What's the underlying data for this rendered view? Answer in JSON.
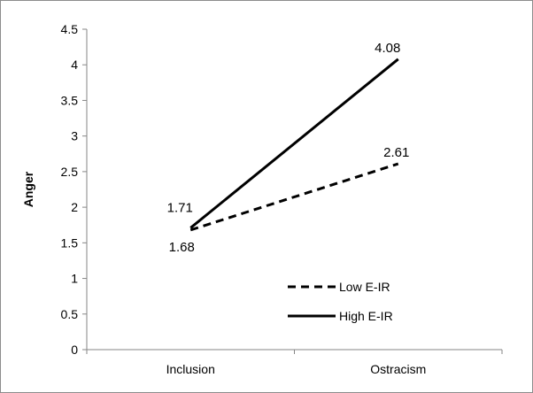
{
  "chart_data": {
    "type": "line",
    "title": "",
    "xlabel": "",
    "ylabel": "Anger",
    "categories": [
      "Inclusion",
      "Ostracism"
    ],
    "ylim": [
      0,
      4.5
    ],
    "ytick_step": 0.5,
    "yticks": [
      "0",
      "0.5",
      "1",
      "1.5",
      "2",
      "2.5",
      "3",
      "3.5",
      "4",
      "4.5"
    ],
    "grid": false,
    "legend_position": "lower-right",
    "series": [
      {
        "name": "Low E-IR",
        "style": "dashed",
        "color": "#000000",
        "values": [
          1.68,
          2.61
        ],
        "labels": [
          "1.68",
          "2.61"
        ]
      },
      {
        "name": "High E-IR",
        "style": "solid",
        "color": "#000000",
        "values": [
          1.71,
          4.08
        ],
        "labels": [
          "1.71",
          "4.08"
        ]
      }
    ]
  }
}
